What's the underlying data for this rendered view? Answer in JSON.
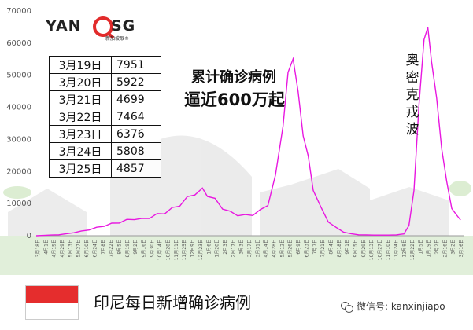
{
  "logo": {
    "text_left": "YAN",
    "text_right": "SG",
    "subtext": "新加坡眼®"
  },
  "table": [
    {
      "date": "3月19日",
      "value": "7951"
    },
    {
      "date": "3月20日",
      "value": "5922"
    },
    {
      "date": "3月21日",
      "value": "4699"
    },
    {
      "date": "3月22日",
      "value": "7464"
    },
    {
      "date": "3月23日",
      "value": "6376"
    },
    {
      "date": "3月24日",
      "value": "5808"
    },
    {
      "date": "3月25日",
      "value": "4857"
    }
  ],
  "headline": {
    "line1": "累计确诊病例",
    "line2": "逼近600万起"
  },
  "annotation": "奥密克戎波",
  "caption": "印尼每日新增确诊病例",
  "watermark": "微信号: kanxinjiapo",
  "colors": {
    "line": "#e817e0",
    "flag_red": "#e52d2d"
  },
  "chart_data": {
    "type": "line",
    "title": "印尼每日新增确诊病例",
    "ylim": [
      0,
      70000
    ],
    "yticks": [
      0,
      10000,
      20000,
      30000,
      40000,
      50000,
      60000,
      70000
    ],
    "xticks": [
      "3月18日",
      "4月1日",
      "4月15日",
      "4月29日",
      "5月13日",
      "5月27日",
      "6月10日",
      "6月24日",
      "7月8日",
      "7月22日",
      "8月5日",
      "8月19日",
      "9月2日",
      "9月16日",
      "9月30日",
      "10月14日",
      "10月28日",
      "11月11日",
      "11月25日",
      "12月9日",
      "12月23日",
      "1月6日",
      "1月20日",
      "2月3日",
      "2月17日",
      "3月3日",
      "3月17日",
      "3月31日",
      "4月14日",
      "4月28日",
      "5月12日",
      "5月26日",
      "6月9日",
      "6月23日",
      "7月7日",
      "7月21日",
      "8月4日",
      "8月18日",
      "9月1日",
      "9月15日",
      "9月29日",
      "10月13日",
      "10月27日",
      "11月10日",
      "11月24日",
      "12月8日",
      "12月22日",
      "1月5日",
      "1月19日",
      "2月2日",
      "2月16日",
      "3月2日",
      "3月16日"
    ],
    "points": [
      [
        0,
        0
      ],
      [
        6,
        100
      ],
      [
        12,
        200
      ],
      [
        18,
        300
      ],
      [
        24,
        600
      ],
      [
        30,
        1000
      ],
      [
        36,
        1400
      ],
      [
        42,
        1900
      ],
      [
        48,
        2500
      ],
      [
        54,
        3100
      ],
      [
        60,
        3700
      ],
      [
        66,
        4200
      ],
      [
        72,
        4800
      ],
      [
        78,
        5300
      ],
      [
        84,
        5100
      ],
      [
        90,
        5700
      ],
      [
        96,
        6500
      ],
      [
        102,
        7200
      ],
      [
        108,
        8300
      ],
      [
        114,
        9800
      ],
      [
        120,
        11500
      ],
      [
        126,
        13500
      ],
      [
        132,
        14000
      ],
      [
        136,
        13000
      ],
      [
        142,
        11000
      ],
      [
        148,
        8800
      ],
      [
        154,
        7200
      ],
      [
        160,
        6600
      ],
      [
        166,
        6200
      ],
      [
        172,
        6700
      ],
      [
        178,
        7700
      ],
      [
        184,
        10000
      ],
      [
        190,
        18000
      ],
      [
        196,
        35000
      ],
      [
        200,
        50000
      ],
      [
        204,
        56000
      ],
      [
        208,
        44000
      ],
      [
        212,
        32000
      ],
      [
        216,
        24000
      ],
      [
        220,
        15000
      ],
      [
        226,
        8500
      ],
      [
        232,
        4500
      ],
      [
        238,
        2500
      ],
      [
        244,
        1200
      ],
      [
        250,
        600
      ],
      [
        256,
        300
      ],
      [
        262,
        250
      ],
      [
        268,
        200
      ],
      [
        274,
        180
      ],
      [
        280,
        200
      ],
      [
        286,
        250
      ],
      [
        292,
        600
      ],
      [
        296,
        3000
      ],
      [
        300,
        15000
      ],
      [
        304,
        40000
      ],
      [
        308,
        62000
      ],
      [
        311,
        64000
      ],
      [
        314,
        55000
      ],
      [
        318,
        42000
      ],
      [
        322,
        28000
      ],
      [
        326,
        16000
      ],
      [
        330,
        9000
      ],
      [
        334,
        6000
      ],
      [
        337,
        4900
      ]
    ]
  }
}
